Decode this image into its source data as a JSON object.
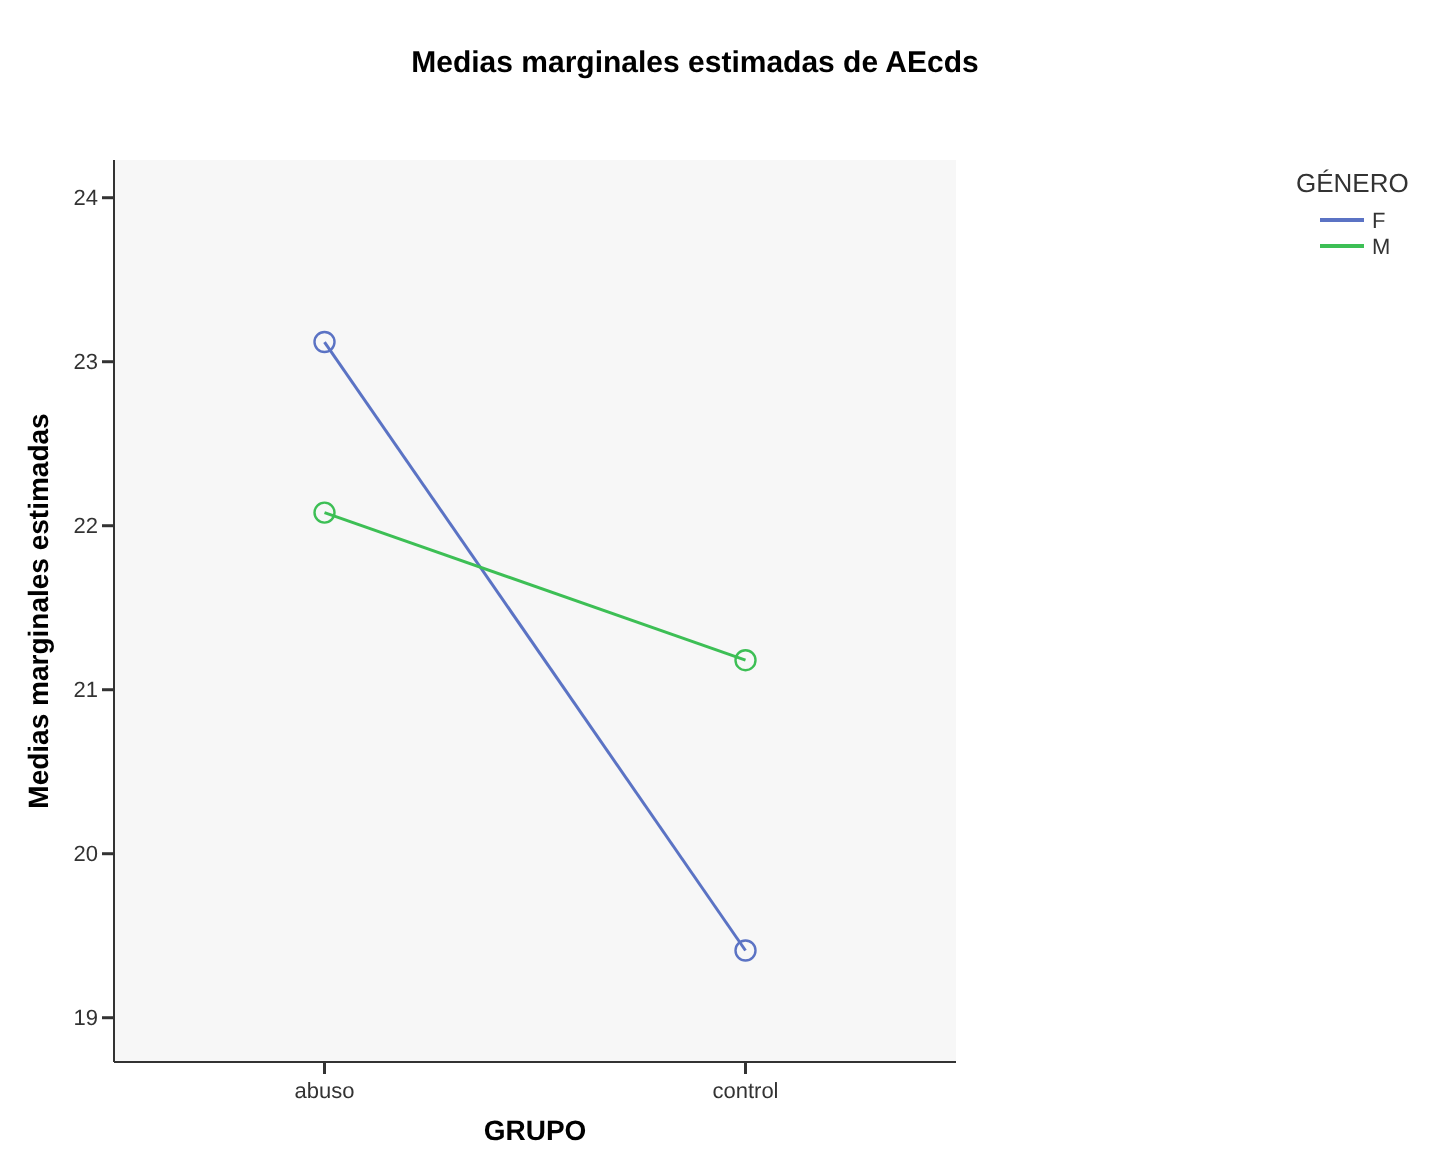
{
  "chart_data": {
    "type": "line",
    "title": "Medias marginales estimadas de AEcds",
    "xlabel": "GRUPO",
    "ylabel": "Medias marginales estimadas",
    "legend_title": "GÉNERO",
    "categories": [
      "abuso",
      "control"
    ],
    "series": [
      {
        "name": "F",
        "color": "#5b73c4",
        "values": [
          23.12,
          19.41
        ]
      },
      {
        "name": "M",
        "color": "#3dbf55",
        "values": [
          22.08,
          21.18
        ]
      }
    ],
    "ylim": [
      18.73,
      24.23
    ],
    "yticks": [
      19,
      20,
      21,
      22,
      23,
      24
    ],
    "grid": false,
    "legend": "top right",
    "marker": "circle",
    "line_style": "solid"
  }
}
